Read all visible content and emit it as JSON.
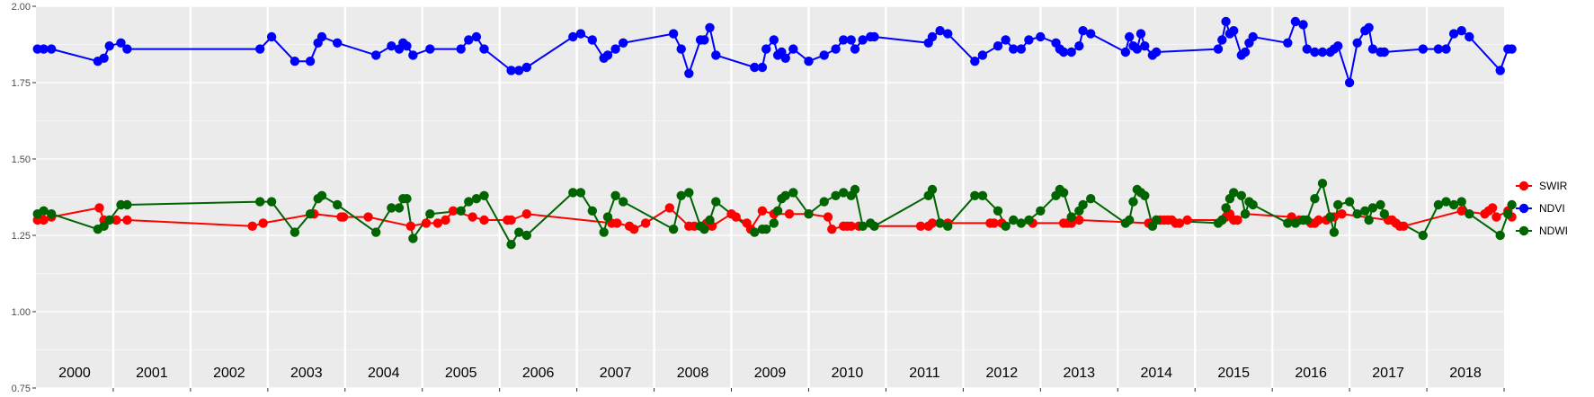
{
  "chart_data": {
    "type": "line",
    "title": "",
    "xlabel": "",
    "ylabel": "",
    "ylim": [
      0.75,
      2.0
    ],
    "yticks": [
      "0.75",
      "1.00",
      "1.25",
      "1.50",
      "1.75",
      "2.00"
    ],
    "xlim": [
      2000.0,
      2019.0
    ],
    "x_unit": "year (decimal)",
    "grid": true,
    "panel_background": "#ebebeb",
    "legend_position": "right",
    "years": [
      "2000",
      "2001",
      "2002",
      "2003",
      "2004",
      "2005",
      "2006",
      "2007",
      "2008",
      "2009",
      "2010",
      "2011",
      "2012",
      "2013",
      "2014",
      "2015",
      "2016",
      "2017",
      "2018"
    ],
    "series": [
      {
        "name": "SWIR",
        "color": "#ff0000",
        "x": [
          2000.02,
          2000.1,
          2000.2,
          2000.82,
          2000.88,
          2001.04,
          2001.18,
          2002.8,
          2002.94,
          2003.6,
          2003.95,
          2003.98,
          2004.3,
          2004.85,
          2005.05,
          2005.2,
          2005.3,
          2005.4,
          2005.65,
          2005.8,
          2006.1,
          2006.15,
          2006.35,
          2007.45,
          2007.52,
          2007.68,
          2007.74,
          2007.89,
          2008.2,
          2008.45,
          2008.52,
          2008.68,
          2008.75,
          2009.0,
          2009.06,
          2009.2,
          2009.25,
          2009.4,
          2009.55,
          2009.75,
          2010.0,
          2010.25,
          2010.3,
          2010.45,
          2010.5,
          2010.55,
          2010.65,
          2011.45,
          2011.55,
          2011.6,
          2011.7,
          2011.8,
          2012.35,
          2012.4,
          2012.5,
          2012.9,
          2013.3,
          2013.35,
          2013.4,
          2013.5,
          2014.4,
          2014.5,
          2014.55,
          2014.6,
          2014.65,
          2014.7,
          2014.75,
          2014.8,
          2014.9,
          2015.35,
          2015.4,
          2015.45,
          2015.5,
          2015.55,
          2015.65,
          2016.25,
          2016.35,
          2016.5,
          2016.55,
          2016.6,
          2016.7,
          2016.8,
          2016.9,
          2017.5,
          2017.55,
          2017.6,
          2017.65,
          2017.7,
          2018.45,
          2018.75,
          2018.8,
          2018.85,
          2018.9,
          2019.05,
          2019.1
        ],
        "values": [
          1.3,
          1.3,
          1.31,
          1.34,
          1.3,
          1.3,
          1.3,
          1.28,
          1.29,
          1.32,
          1.31,
          1.31,
          1.31,
          1.28,
          1.29,
          1.29,
          1.3,
          1.33,
          1.31,
          1.3,
          1.3,
          1.3,
          1.32,
          1.29,
          1.29,
          1.28,
          1.27,
          1.29,
          1.34,
          1.28,
          1.28,
          1.29,
          1.28,
          1.32,
          1.31,
          1.29,
          1.27,
          1.33,
          1.32,
          1.32,
          1.32,
          1.31,
          1.27,
          1.28,
          1.28,
          1.28,
          1.28,
          1.28,
          1.28,
          1.29,
          1.29,
          1.29,
          1.29,
          1.29,
          1.29,
          1.29,
          1.29,
          1.29,
          1.29,
          1.3,
          1.29,
          1.3,
          1.3,
          1.3,
          1.3,
          1.3,
          1.29,
          1.29,
          1.3,
          1.3,
          1.31,
          1.32,
          1.3,
          1.3,
          1.32,
          1.31,
          1.3,
          1.29,
          1.29,
          1.3,
          1.3,
          1.31,
          1.32,
          1.3,
          1.3,
          1.29,
          1.28,
          1.28,
          1.33,
          1.32,
          1.33,
          1.34,
          1.31,
          1.33,
          1.31
        ]
      },
      {
        "name": "NDVI",
        "color": "#0000ff",
        "x": [
          2000.02,
          2000.1,
          2000.2,
          2000.8,
          2000.88,
          2000.95,
          2001.1,
          2001.18,
          2002.9,
          2003.05,
          2003.35,
          2003.55,
          2003.65,
          2003.7,
          2003.9,
          2004.4,
          2004.6,
          2004.7,
          2004.75,
          2004.8,
          2004.88,
          2005.1,
          2005.5,
          2005.6,
          2005.7,
          2005.8,
          2006.15,
          2006.25,
          2006.35,
          2006.95,
          2007.05,
          2007.2,
          2007.35,
          2007.4,
          2007.5,
          2007.6,
          2008.25,
          2008.35,
          2008.45,
          2008.6,
          2008.65,
          2008.72,
          2008.8,
          2009.3,
          2009.4,
          2009.45,
          2009.55,
          2009.6,
          2009.65,
          2009.7,
          2009.8,
          2010.0,
          2010.2,
          2010.35,
          2010.45,
          2010.55,
          2010.6,
          2010.7,
          2010.8,
          2010.85,
          2011.55,
          2011.6,
          2011.7,
          2011.8,
          2012.15,
          2012.25,
          2012.45,
          2012.55,
          2012.65,
          2012.75,
          2012.85,
          2013.0,
          2013.2,
          2013.25,
          2013.3,
          2013.4,
          2013.5,
          2013.55,
          2013.65,
          2014.1,
          2014.15,
          2014.2,
          2014.25,
          2014.3,
          2014.35,
          2014.45,
          2014.5,
          2015.3,
          2015.35,
          2015.4,
          2015.45,
          2015.5,
          2015.6,
          2015.65,
          2015.7,
          2015.75,
          2016.2,
          2016.3,
          2016.4,
          2016.45,
          2016.55,
          2016.65,
          2016.75,
          2016.8,
          2016.85,
          2017.0,
          2017.1,
          2017.2,
          2017.25,
          2017.3,
          2017.4,
          2017.45,
          2017.95,
          2018.15,
          2018.25,
          2018.35,
          2018.45,
          2018.55,
          2018.95,
          2019.05,
          2019.1
        ],
        "values": [
          1.86,
          1.86,
          1.86,
          1.82,
          1.83,
          1.87,
          1.88,
          1.86,
          1.86,
          1.9,
          1.82,
          1.82,
          1.88,
          1.9,
          1.88,
          1.84,
          1.87,
          1.86,
          1.88,
          1.87,
          1.84,
          1.86,
          1.86,
          1.89,
          1.9,
          1.86,
          1.79,
          1.79,
          1.8,
          1.9,
          1.91,
          1.89,
          1.83,
          1.84,
          1.86,
          1.88,
          1.91,
          1.86,
          1.78,
          1.89,
          1.89,
          1.93,
          1.84,
          1.8,
          1.8,
          1.86,
          1.89,
          1.84,
          1.85,
          1.83,
          1.86,
          1.82,
          1.84,
          1.86,
          1.89,
          1.89,
          1.86,
          1.89,
          1.9,
          1.9,
          1.88,
          1.9,
          1.92,
          1.91,
          1.82,
          1.84,
          1.87,
          1.89,
          1.86,
          1.86,
          1.89,
          1.9,
          1.88,
          1.86,
          1.85,
          1.85,
          1.87,
          1.92,
          1.91,
          1.85,
          1.9,
          1.87,
          1.86,
          1.91,
          1.87,
          1.84,
          1.85,
          1.86,
          1.89,
          1.95,
          1.91,
          1.92,
          1.84,
          1.85,
          1.88,
          1.9,
          1.88,
          1.95,
          1.94,
          1.86,
          1.85,
          1.85,
          1.85,
          1.86,
          1.87,
          1.75,
          1.88,
          1.92,
          1.93,
          1.86,
          1.85,
          1.85,
          1.86,
          1.86,
          1.86,
          1.91,
          1.92,
          1.9,
          1.79,
          1.86,
          1.86
        ]
      },
      {
        "name": "NDWI",
        "color": "#006400",
        "x": [
          2000.02,
          2000.1,
          2000.2,
          2000.8,
          2000.88,
          2000.95,
          2001.1,
          2001.18,
          2002.9,
          2003.05,
          2003.35,
          2003.55,
          2003.65,
          2003.7,
          2003.9,
          2004.4,
          2004.6,
          2004.7,
          2004.75,
          2004.8,
          2004.88,
          2005.1,
          2005.5,
          2005.6,
          2005.7,
          2005.8,
          2006.15,
          2006.25,
          2006.35,
          2006.95,
          2007.05,
          2007.2,
          2007.35,
          2007.4,
          2007.5,
          2007.6,
          2008.25,
          2008.35,
          2008.45,
          2008.6,
          2008.65,
          2008.72,
          2008.8,
          2009.3,
          2009.4,
          2009.45,
          2009.55,
          2009.6,
          2009.65,
          2009.7,
          2009.8,
          2010.0,
          2010.2,
          2010.35,
          2010.45,
          2010.55,
          2010.6,
          2010.7,
          2010.8,
          2010.85,
          2011.55,
          2011.6,
          2011.7,
          2011.8,
          2012.15,
          2012.25,
          2012.45,
          2012.55,
          2012.65,
          2012.75,
          2012.85,
          2013.0,
          2013.2,
          2013.25,
          2013.3,
          2013.4,
          2013.5,
          2013.55,
          2013.65,
          2014.1,
          2014.15,
          2014.2,
          2014.25,
          2014.3,
          2014.35,
          2014.45,
          2014.5,
          2015.3,
          2015.35,
          2015.4,
          2015.45,
          2015.5,
          2015.6,
          2015.65,
          2015.7,
          2015.75,
          2016.2,
          2016.3,
          2016.4,
          2016.45,
          2016.55,
          2016.65,
          2016.75,
          2016.8,
          2016.85,
          2017.0,
          2017.1,
          2017.2,
          2017.25,
          2017.3,
          2017.4,
          2017.45,
          2017.95,
          2018.15,
          2018.25,
          2018.35,
          2018.45,
          2018.55,
          2018.95,
          2019.05,
          2019.1
        ],
        "values": [
          1.32,
          1.33,
          1.32,
          1.27,
          1.28,
          1.3,
          1.35,
          1.35,
          1.36,
          1.36,
          1.26,
          1.32,
          1.37,
          1.38,
          1.35,
          1.26,
          1.34,
          1.34,
          1.37,
          1.37,
          1.24,
          1.32,
          1.33,
          1.36,
          1.37,
          1.38,
          1.22,
          1.26,
          1.25,
          1.39,
          1.39,
          1.33,
          1.26,
          1.31,
          1.38,
          1.36,
          1.27,
          1.38,
          1.39,
          1.28,
          1.27,
          1.3,
          1.36,
          1.26,
          1.27,
          1.27,
          1.29,
          1.33,
          1.37,
          1.38,
          1.39,
          1.32,
          1.36,
          1.38,
          1.39,
          1.38,
          1.4,
          1.28,
          1.29,
          1.28,
          1.38,
          1.4,
          1.29,
          1.28,
          1.38,
          1.38,
          1.33,
          1.28,
          1.3,
          1.29,
          1.3,
          1.33,
          1.38,
          1.4,
          1.39,
          1.31,
          1.33,
          1.35,
          1.37,
          1.29,
          1.3,
          1.36,
          1.4,
          1.39,
          1.38,
          1.28,
          1.3,
          1.29,
          1.3,
          1.34,
          1.37,
          1.39,
          1.38,
          1.32,
          1.36,
          1.35,
          1.29,
          1.29,
          1.3,
          1.3,
          1.37,
          1.42,
          1.31,
          1.26,
          1.35,
          1.36,
          1.32,
          1.33,
          1.3,
          1.34,
          1.35,
          1.32,
          1.25,
          1.35,
          1.36,
          1.35,
          1.36,
          1.32,
          1.25,
          1.32,
          1.35
        ]
      }
    ]
  }
}
